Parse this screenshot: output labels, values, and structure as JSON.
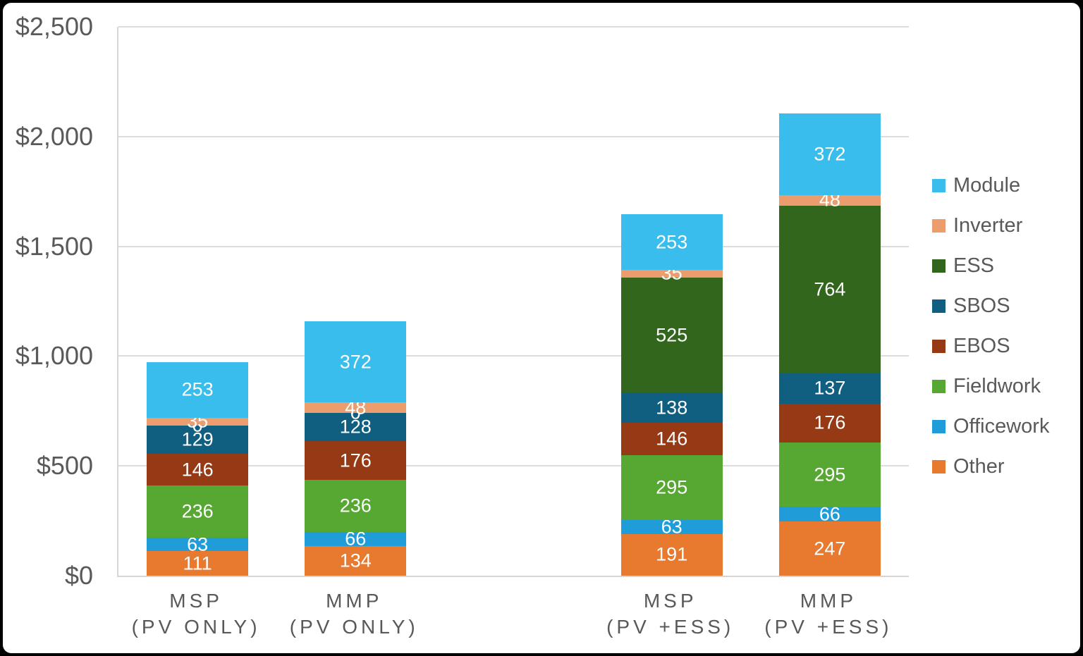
{
  "chart_data": {
    "type": "bar",
    "stacked": true,
    "title": "",
    "xlabel": "",
    "ylabel": "",
    "ylim": [
      0,
      2500
    ],
    "grid": true,
    "legend_position": "right",
    "yticks": [
      0,
      500,
      1000,
      1500,
      2000,
      2500
    ],
    "ytick_labels": [
      "$0",
      "$500",
      "$1,000",
      "$1,500",
      "$2,000",
      "$2,500"
    ],
    "slot_count": 5,
    "categories": [
      {
        "line1": "MSP",
        "line2": "(PV ONLY)",
        "slot": 0
      },
      {
        "line1": "MMP",
        "line2": "(PV ONLY)",
        "slot": 1
      },
      {
        "line1": "MSP",
        "line2": "(PV +ESS)",
        "slot": 3
      },
      {
        "line1": "MMP",
        "line2": "(PV +ESS)",
        "slot": 4
      }
    ],
    "series": [
      {
        "name": "Other",
        "color": "#E87A30",
        "values": [
          111,
          134,
          191,
          247
        ]
      },
      {
        "name": "Officework",
        "color": "#209DD9",
        "values": [
          63,
          66,
          63,
          66
        ]
      },
      {
        "name": "Fieldwork",
        "color": "#57A733",
        "values": [
          236,
          236,
          295,
          295
        ]
      },
      {
        "name": "EBOS",
        "color": "#963A16",
        "values": [
          146,
          176,
          146,
          176
        ]
      },
      {
        "name": "SBOS",
        "color": "#115F80",
        "values": [
          129,
          128,
          138,
          137
        ]
      },
      {
        "name": "ESS",
        "color": "#31661C",
        "values": [
          0,
          0,
          525,
          764
        ]
      },
      {
        "name": "Inverter",
        "color": "#EC9C6D",
        "values": [
          35,
          48,
          35,
          48
        ]
      },
      {
        "name": "Module",
        "color": "#38BDEC",
        "values": [
          253,
          372,
          253,
          372
        ]
      }
    ],
    "legend": [
      "Module",
      "Inverter",
      "ESS",
      "SBOS",
      "EBOS",
      "Fieldwork",
      "Officework",
      "Other"
    ],
    "colors": {
      "text_gray": "#595959",
      "gridline": "#DCDCDC",
      "data_label": "#ffffff"
    }
  }
}
